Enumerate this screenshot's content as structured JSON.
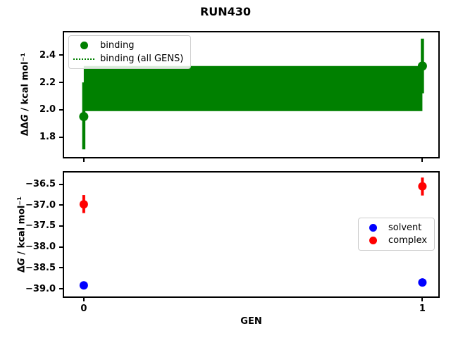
{
  "figure": {
    "title": "RUN430",
    "background": "#ffffff"
  },
  "chart_data": [
    {
      "type": "scatter",
      "name": "ddg-vs-gen",
      "title": "",
      "xlabel": "",
      "ylabel": {
        "delta": "ΔΔ",
        "sym": "G",
        "rest": " / kcal mol⁻¹"
      },
      "xlim": [
        -0.058,
        1.047
      ],
      "ylim": [
        1.654,
        2.566
      ],
      "yticks": [
        2.4,
        2.2,
        2.0,
        1.8
      ],
      "ytick_labels": [
        "2.4",
        "2.2",
        "2.0",
        "1.8"
      ],
      "xticks": [
        0,
        1
      ],
      "xtick_labels": [
        "",
        ""
      ],
      "grid": false,
      "elinewidth": 4.5,
      "marker_radius": 6.5,
      "band": {
        "label": "binding (all GENS)",
        "x": [
          0,
          1
        ],
        "y_lo": 1.99,
        "y_hi": 2.32,
        "center": 2.16,
        "color": "#008000"
      },
      "series": [
        {
          "name": "binding",
          "color": "#008000",
          "x": [
            0,
            1
          ],
          "y": [
            1.95,
            2.32
          ],
          "err_lo": [
            1.71,
            2.12
          ],
          "err_hi": [
            2.2,
            2.52
          ]
        }
      ],
      "legend": {
        "position": "upper left",
        "items": [
          {
            "label": "binding",
            "marker": "dot",
            "color": "#008000"
          },
          {
            "label": "binding (all GENS)",
            "marker": "dotted-line",
            "color": "#008000"
          }
        ]
      }
    },
    {
      "type": "scatter",
      "name": "dg-vs-gen",
      "title": "",
      "xlabel": "GEN",
      "ylabel": {
        "delta": "Δ",
        "sym": "G",
        "rest": " / kcal mol⁻¹"
      },
      "xlim": [
        -0.058,
        1.047
      ],
      "ylim": [
        -39.185,
        -36.22
      ],
      "yticks": [
        -36.5,
        -37.0,
        -37.5,
        -38.0,
        -38.5,
        -39.0
      ],
      "ytick_labels": [
        "−36.5",
        "−37.0",
        "−37.5",
        "−38.0",
        "−38.5",
        "−39.0"
      ],
      "xticks": [
        0,
        1
      ],
      "xtick_labels": [
        "0",
        "1"
      ],
      "grid": false,
      "elinewidth": 4,
      "marker_radius": 6,
      "series": [
        {
          "name": "solvent",
          "color": "#0000ff",
          "x": [
            0,
            1
          ],
          "y": [
            -38.92,
            -38.85
          ],
          "err_lo": [
            -38.97,
            -38.9
          ],
          "err_hi": [
            -38.87,
            -38.8
          ]
        },
        {
          "name": "complex",
          "color": "#ff0000",
          "x": [
            0,
            1
          ],
          "y": [
            -36.98,
            -36.55
          ],
          "err_lo": [
            -37.19,
            -36.77
          ],
          "err_hi": [
            -36.76,
            -36.34
          ]
        }
      ],
      "legend": {
        "position": "center right",
        "items": [
          {
            "label": "solvent",
            "marker": "dot",
            "color": "#0000ff"
          },
          {
            "label": "complex",
            "marker": "dot",
            "color": "#ff0000"
          }
        ]
      }
    }
  ]
}
